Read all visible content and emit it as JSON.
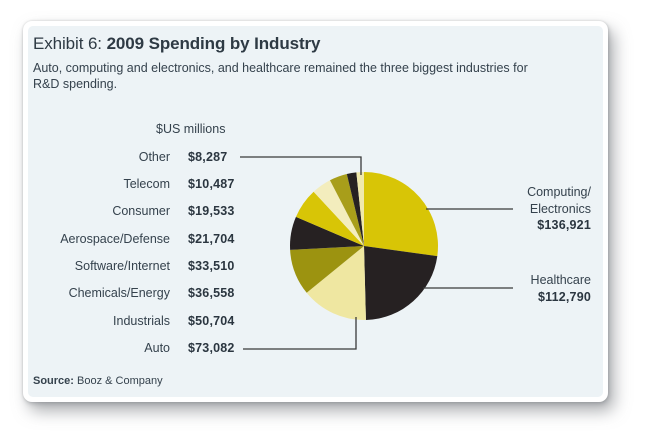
{
  "header": {
    "exhibit_label": "Exhibit 6:",
    "title": "2009 Spending by Industry",
    "subtitle_lines": [
      "Auto, computing and electronics, and healthcare remained the three biggest industries for",
      "R&D spending."
    ]
  },
  "units_label": "$US millions",
  "left_column": {
    "rows": [
      {
        "label": "Other",
        "value": "$8,287"
      },
      {
        "label": "Telecom",
        "value": "$10,487"
      },
      {
        "label": "Consumer",
        "value": "$19,533"
      },
      {
        "label": "Aerospace/Defense",
        "value": "$21,704"
      },
      {
        "label": "Software/Internet",
        "value": "$33,510"
      },
      {
        "label": "Chemicals/Energy",
        "value": "$36,558"
      },
      {
        "label": "Industrials",
        "value": "$50,704"
      },
      {
        "label": "Auto",
        "value": "$73,082"
      }
    ]
  },
  "right_labels": {
    "computing": {
      "line1": "Computing/",
      "line2": "Electronics",
      "value": "$136,921"
    },
    "healthcare": {
      "line1": "Healthcare",
      "value": "$112,790"
    }
  },
  "footer": {
    "source_label": "Source:",
    "source_text": "Booz & Company"
  },
  "colors": {
    "panel_background": "#edf3f6",
    "gold": "#d8c506",
    "black": "#262122",
    "cream": "#efe7a1",
    "olive_dark": "#9c9310",
    "olive_medium": "#a89e1a",
    "cream_light": "#f3edbd",
    "connector": "#3a3a3a",
    "text": "#35424d"
  },
  "chart_data": {
    "type": "pie",
    "title": "Exhibit 6: 2009 Spending by Industry",
    "units": "$US millions",
    "start_angle_deg": 0,
    "direction": "clockwise",
    "legend_position": "left-and-right-callouts",
    "slices": [
      {
        "label": "Computing/Electronics",
        "value": 136921,
        "display": "$136,921",
        "color": "#d8c506"
      },
      {
        "label": "Healthcare",
        "value": 112790,
        "display": "$112,790",
        "color": "#262122"
      },
      {
        "label": "Auto",
        "value": 73082,
        "display": "$73,082",
        "color": "#efe7a1"
      },
      {
        "label": "Industrials",
        "value": 50704,
        "display": "$50,704",
        "color": "#9c9310"
      },
      {
        "label": "Chemicals/Energy",
        "value": 36558,
        "display": "$36,558",
        "color": "#262122"
      },
      {
        "label": "Software/Internet",
        "value": 33510,
        "display": "$33,510",
        "color": "#d8c506"
      },
      {
        "label": "Aerospace/Defense",
        "value": 21704,
        "display": "$21,704",
        "color": "#f3edbd"
      },
      {
        "label": "Consumer",
        "value": 19533,
        "display": "$19,533",
        "color": "#a89e1a"
      },
      {
        "label": "Telecom",
        "value": 10487,
        "display": "$10,487",
        "color": "#262122"
      },
      {
        "label": "Other",
        "value": 8287,
        "display": "$8,287",
        "color": "#f0e9ab"
      }
    ]
  }
}
